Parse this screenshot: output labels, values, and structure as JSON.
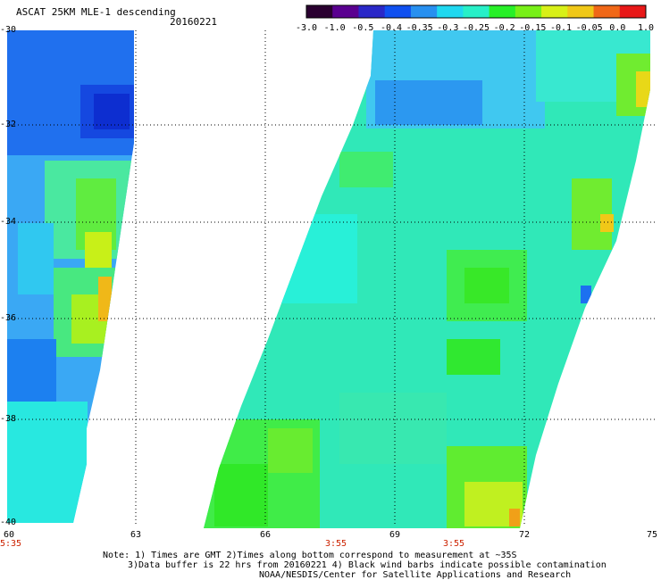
{
  "header": {
    "title": "ASCAT 25KM MLE-1 descending",
    "date": "20160221"
  },
  "colorbar": {
    "labels": [
      "-3.0",
      "-1.0",
      "-0.5",
      "-0.4",
      "-0.35",
      "-0.3",
      "-0.25",
      "-0.2",
      "-0.15",
      "-0.1",
      "-0.05",
      "0.0",
      "1.0"
    ],
    "colors": [
      "#2a0030",
      "#5a0090",
      "#2a28c8",
      "#1050f0",
      "#2890f0",
      "#20d8f0",
      "#28f0c8",
      "#28f028",
      "#78f018",
      "#d8f018",
      "#f0c818",
      "#f06818",
      "#e81818"
    ]
  },
  "map": {
    "lat_labels": [
      "-30",
      "-32",
      "-34",
      "-36",
      "-38",
      "-40"
    ],
    "lon_labels": [
      "60",
      "63",
      "66",
      "69",
      "72",
      "75"
    ],
    "time_labels": [
      "5:35",
      "3:55",
      "3:55"
    ]
  },
  "footer": {
    "line1": "Note: 1) Times are GMT 2)Times along bottom correspond to measurement at ~35S",
    "line2": "3)Data buffer is 22 hrs from 20160221 4) Black wind barbs indicate possible contamination",
    "line3": "NOAA/NESDIS/Center for Satellite Applications and Research"
  }
}
